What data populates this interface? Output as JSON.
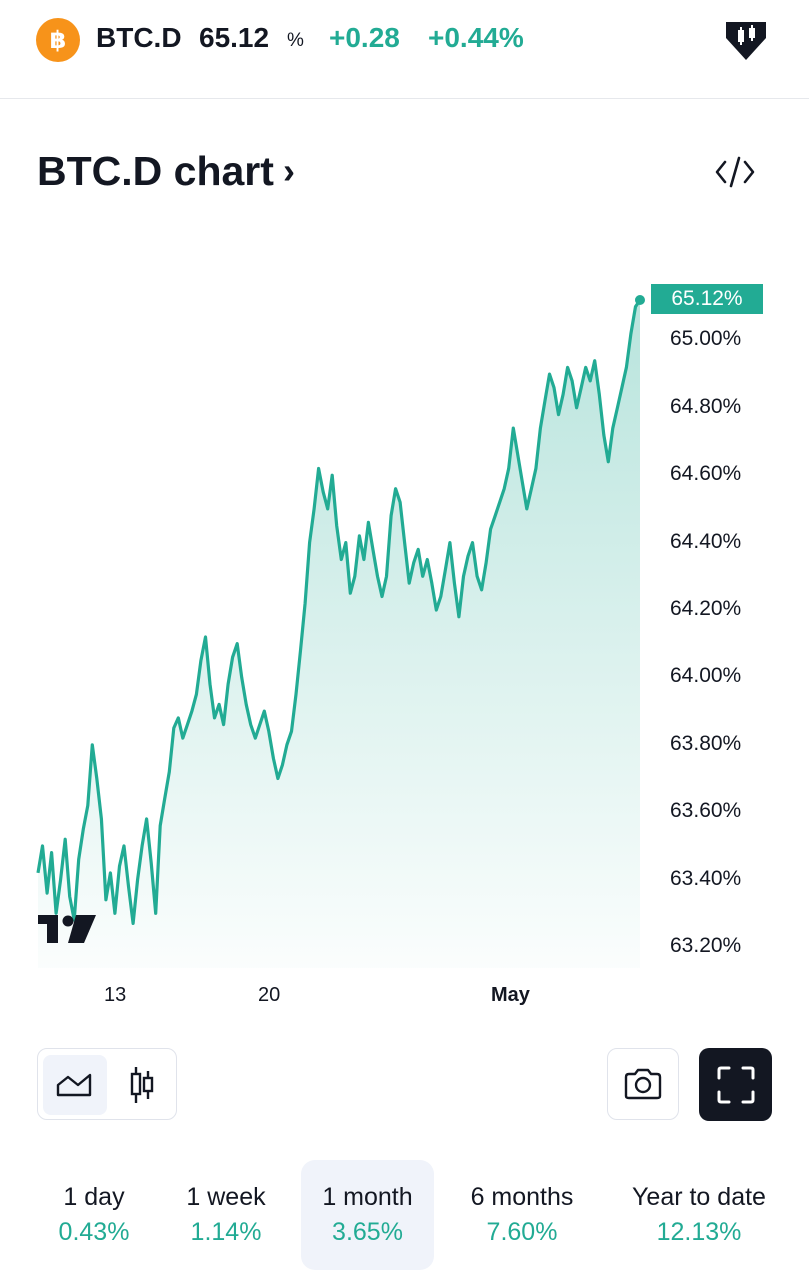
{
  "header": {
    "coin_icon_glyph": "฿",
    "symbol": "BTC.D",
    "price": "65.12",
    "unit": "%",
    "change": "+0.28",
    "change_percent": "+0.44%",
    "badge_icon": "candlestick-badge-icon"
  },
  "title": {
    "text": "BTC.D chart",
    "chevron": "›",
    "embed_icon": "code-icon"
  },
  "colors": {
    "accent": "#22ab94",
    "coin": "#f7931a",
    "text": "#131722"
  },
  "chart_data": {
    "type": "area",
    "x_ticks": [
      "13",
      "20",
      "May"
    ],
    "y_ticks": [
      "65.00%",
      "64.80%",
      "64.60%",
      "64.40%",
      "64.20%",
      "64.00%",
      "63.80%",
      "63.60%",
      "63.40%",
      "63.20%"
    ],
    "ylim": [
      63.2,
      65.12
    ],
    "last_value_label": "65.12%",
    "series": [
      {
        "values": [
          63.42,
          63.5,
          63.36,
          63.48,
          63.3,
          63.4,
          63.52,
          63.35,
          63.28,
          63.46,
          63.55,
          63.62,
          63.8,
          63.7,
          63.58,
          63.34,
          63.42,
          63.3,
          63.44,
          63.5,
          63.38,
          63.27,
          63.4,
          63.5,
          63.58,
          63.45,
          63.3,
          63.56,
          63.64,
          63.72,
          63.85,
          63.88,
          63.82,
          63.86,
          63.9,
          63.95,
          64.05,
          64.12,
          63.98,
          63.88,
          63.92,
          63.86,
          63.98,
          64.06,
          64.1,
          64.0,
          63.92,
          63.86,
          63.82,
          63.86,
          63.9,
          63.84,
          63.76,
          63.7,
          63.74,
          63.8,
          63.84,
          63.95,
          64.08,
          64.22,
          64.4,
          64.5,
          64.62,
          64.55,
          64.5,
          64.6,
          64.45,
          64.35,
          64.4,
          64.25,
          64.3,
          64.42,
          64.35,
          64.46,
          64.38,
          64.3,
          64.24,
          64.3,
          64.48,
          64.56,
          64.52,
          64.4,
          64.28,
          64.34,
          64.38,
          64.3,
          64.35,
          64.28,
          64.2,
          64.24,
          64.32,
          64.4,
          64.28,
          64.18,
          64.3,
          64.36,
          64.4,
          64.3,
          64.26,
          64.34,
          64.44,
          64.48,
          64.52,
          64.56,
          64.62,
          64.74,
          64.66,
          64.58,
          64.5,
          64.56,
          64.62,
          64.74,
          64.82,
          64.9,
          64.86,
          64.78,
          64.84,
          64.92,
          64.88,
          64.8,
          64.86,
          64.92,
          64.88,
          64.94,
          64.84,
          64.72,
          64.64,
          64.74,
          64.8,
          64.86,
          64.92,
          65.02,
          65.1,
          65.12
        ]
      }
    ],
    "grid": false
  },
  "toolbar": {
    "area_icon": "area-chart-icon",
    "candles_icon": "candles-icon",
    "camera_icon": "camera-icon",
    "fullscreen_icon": "fullscreen-icon"
  },
  "periods": [
    {
      "label": "1 day",
      "value": "0.43%"
    },
    {
      "label": "1 week",
      "value": "1.14%"
    },
    {
      "label": "1 month",
      "value": "3.65%",
      "active": true
    },
    {
      "label": "6 months",
      "value": "7.60%"
    },
    {
      "label": "Year to date",
      "value": "12.13%"
    }
  ]
}
